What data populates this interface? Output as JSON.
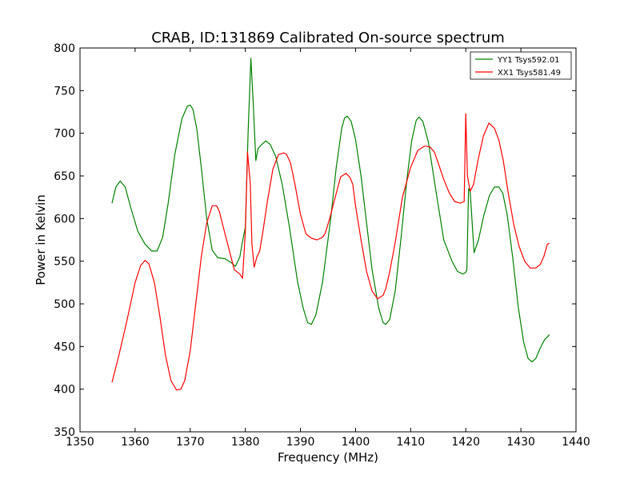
{
  "chart_data": {
    "type": "line",
    "title": "CRAB, ID:131869 Calibrated On-source spectrum",
    "xlabel": "Frequency (MHz)",
    "ylabel": "Power in Kelvin",
    "xlim": [
      1350,
      1440
    ],
    "ylim": [
      350,
      800
    ],
    "xticks": [
      1350,
      1360,
      1370,
      1380,
      1390,
      1400,
      1410,
      1420,
      1430,
      1440
    ],
    "yticks": [
      350,
      400,
      450,
      500,
      550,
      600,
      650,
      700,
      750,
      800
    ],
    "xtick_labels": [
      "1350",
      "1360",
      "1370",
      "1380",
      "1390",
      "1400",
      "1410",
      "1420",
      "1430",
      "1440"
    ],
    "ytick_labels": [
      "350",
      "400",
      "450",
      "500",
      "550",
      "600",
      "650",
      "700",
      "750",
      "800"
    ],
    "grid": false,
    "legend_position": "top-right",
    "series": [
      {
        "name": "YY1 Tsys592.01",
        "color": "#008000",
        "x": [
          1355.8,
          1356.5,
          1357.3,
          1358.2,
          1359.2,
          1360.5,
          1361.8,
          1363.0,
          1364.0,
          1365.0,
          1366.0,
          1367.2,
          1368.5,
          1369.5,
          1370.0,
          1370.5,
          1371.2,
          1372.0,
          1373.0,
          1374.0,
          1375.0,
          1376.3,
          1377.5,
          1378.2,
          1379.0,
          1379.4,
          1380.0,
          1380.5,
          1381.0,
          1381.4,
          1381.9,
          1382.3,
          1383.0,
          1383.7,
          1384.5,
          1385.5,
          1386.7,
          1388.0,
          1389.5,
          1390.5,
          1391.3,
          1392.0,
          1392.8,
          1394.0,
          1395.5,
          1396.5,
          1397.5,
          1398.0,
          1398.5,
          1399.2,
          1400.0,
          1401.0,
          1402.0,
          1403.0,
          1404.2,
          1405.0,
          1405.5,
          1406.2,
          1407.2,
          1408.3,
          1409.3,
          1410.2,
          1411.0,
          1411.5,
          1412.2,
          1413.2,
          1414.5,
          1416.0,
          1417.5,
          1418.5,
          1419.5,
          1420.0,
          1420.2,
          1420.5,
          1420.8,
          1421.5,
          1422.3,
          1423.2,
          1424.3,
          1425.2,
          1426.0,
          1426.7,
          1427.5,
          1428.5,
          1429.5,
          1430.5,
          1431.3,
          1432.0,
          1432.7,
          1433.5,
          1434.3,
          1435.2
        ],
        "values": [
          618,
          637,
          644,
          637,
          613,
          585,
          570,
          562,
          562,
          578,
          618,
          675,
          717,
          732,
          733,
          728,
          705,
          660,
          600,
          563,
          554,
          553,
          548,
          544,
          555,
          570,
          590,
          700,
          788,
          740,
          668,
          682,
          687,
          691,
          687,
          673,
          640,
          590,
          525,
          495,
          478,
          476,
          487,
          525,
          600,
          660,
          706,
          718,
          720,
          714,
          693,
          650,
          595,
          540,
          495,
          478,
          476,
          482,
          515,
          580,
          645,
          692,
          715,
          719,
          714,
          690,
          636,
          575,
          550,
          538,
          535,
          537,
          540,
          635,
          632,
          560,
          575,
          602,
          627,
          637,
          637,
          630,
          605,
          555,
          497,
          455,
          436,
          432,
          436,
          448,
          458,
          464
        ]
      },
      {
        "name": "XX1 Tsys581.49",
        "color": "#ff0000",
        "x": [
          1355.8,
          1357.0,
          1358.5,
          1360.0,
          1361.0,
          1361.8,
          1362.5,
          1363.5,
          1364.5,
          1365.5,
          1366.5,
          1367.5,
          1368.3,
          1369.0,
          1370.0,
          1371.0,
          1372.0,
          1373.0,
          1374.0,
          1374.8,
          1375.3,
          1376.0,
          1377.0,
          1378.0,
          1379.0,
          1379.5,
          1380.0,
          1380.4,
          1380.9,
          1381.2,
          1381.6,
          1382.1,
          1382.6,
          1383.2,
          1384.0,
          1385.0,
          1386.0,
          1387.0,
          1387.5,
          1388.2,
          1389.0,
          1390.0,
          1391.0,
          1392.0,
          1393.0,
          1394.0,
          1394.5,
          1395.3,
          1396.3,
          1397.3,
          1398.3,
          1399.0,
          1399.5,
          1400.0,
          1401.0,
          1402.0,
          1403.0,
          1404.0,
          1405.0,
          1405.5,
          1406.2,
          1407.2,
          1408.5,
          1410.0,
          1411.3,
          1412.5,
          1413.5,
          1414.3,
          1415.0,
          1416.0,
          1417.0,
          1418.0,
          1419.0,
          1419.7,
          1420.0,
          1420.3,
          1420.8,
          1421.4,
          1422.2,
          1423.2,
          1424.2,
          1425.2,
          1426.0,
          1426.8,
          1427.7,
          1428.7,
          1429.7,
          1430.7,
          1431.7,
          1432.7,
          1433.5,
          1434.2,
          1434.8,
          1435.2
        ],
        "values": [
          408,
          438,
          480,
          525,
          545,
          551,
          547,
          525,
          485,
          440,
          410,
          399,
          400,
          410,
          445,
          500,
          555,
          595,
          615,
          615,
          608,
          590,
          565,
          540,
          535,
          530,
          585,
          678,
          640,
          570,
          543,
          555,
          562,
          585,
          620,
          658,
          675,
          677,
          675,
          665,
          640,
          605,
          582,
          577,
          575,
          578,
          583,
          600,
          625,
          649,
          653,
          648,
          640,
          615,
          575,
          538,
          515,
          506,
          510,
          518,
          538,
          572,
          625,
          660,
          680,
          685,
          684,
          678,
          665,
          646,
          630,
          620,
          618,
          620,
          723,
          650,
          632,
          640,
          668,
          697,
          712,
          706,
          692,
          668,
          630,
          593,
          567,
          550,
          542,
          542,
          546,
          556,
          570,
          571
        ]
      }
    ]
  }
}
